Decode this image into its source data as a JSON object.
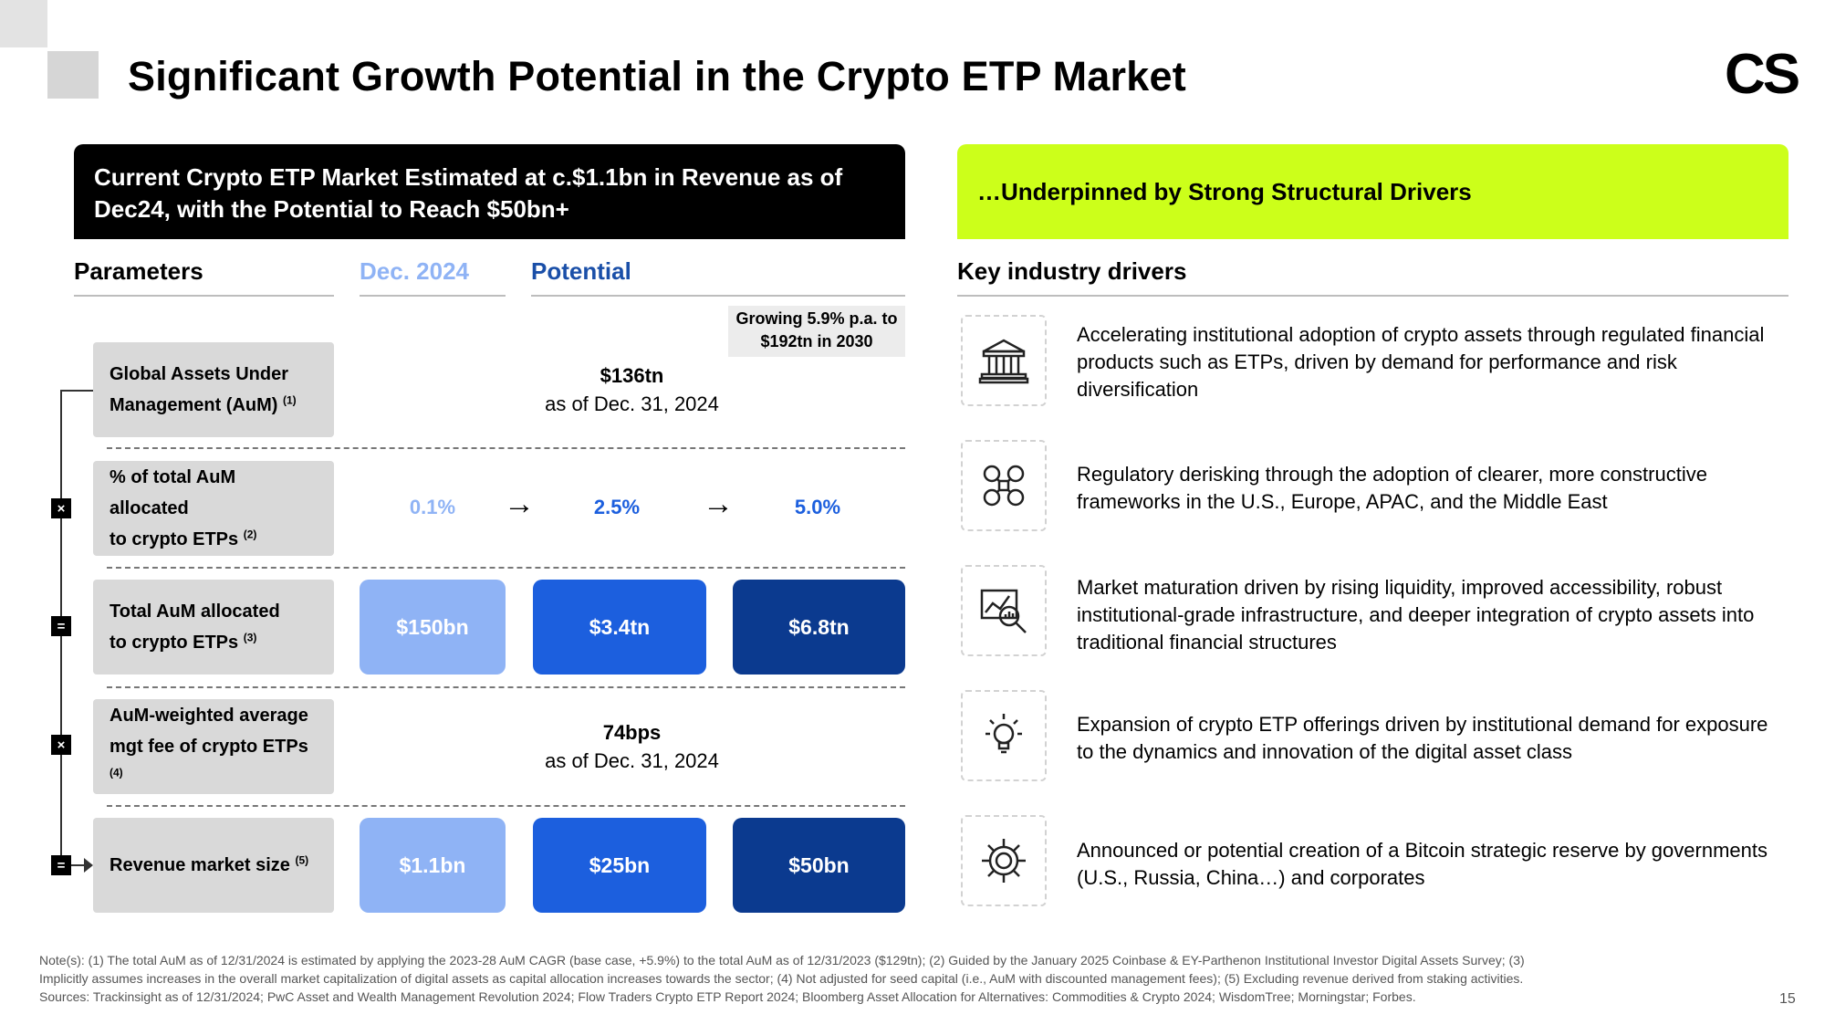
{
  "title": "Significant Growth Potential in the Crypto ETP Market",
  "logo": "CS",
  "left_header": "Current Crypto ETP Market Estimated at c.$1.1bn in Revenue as of Dec24, with the Potential to Reach $50bn+",
  "right_header": "…Underpinned by Strong Structural Drivers",
  "columns": {
    "parameters": "Parameters",
    "dec2024": "Dec. 2024",
    "potential": "Potential",
    "drivers": "Key industry drivers"
  },
  "growth_note": {
    "line1": "Growing 5.9% p.a. to",
    "line2": "$192tn in 2030"
  },
  "rows": [
    {
      "label1": "Global Assets Under",
      "label2": "Management (AuM)",
      "note": "(1)",
      "value": "$136tn",
      "sub": "as of Dec. 31, 2024"
    },
    {
      "label1": "% of total AuM allocated",
      "label2": "to crypto ETPs",
      "note": "(2)",
      "values": [
        "0.1%",
        "2.5%",
        "5.0%"
      ]
    },
    {
      "label1": "Total AuM allocated",
      "label2": "to crypto ETPs",
      "note": "(3)",
      "values": [
        "$150bn",
        "$3.4tn",
        "$6.8tn"
      ]
    },
    {
      "label1": "AuM-weighted average",
      "label2": "mgt fee of crypto ETPs",
      "note": "(4)",
      "value": "74bps",
      "sub": "as of Dec. 31, 2024"
    },
    {
      "label1": "Revenue market size",
      "note": "(5)",
      "values": [
        "$1.1bn",
        "$25bn",
        "$50bn"
      ]
    }
  ],
  "operators": [
    "×",
    "=",
    "×",
    "="
  ],
  "drivers": [
    {
      "icon": "bank-icon",
      "text": "Accelerating institutional adoption of crypto assets through regulated financial products such as ETPs, driven by demand for performance and risk diversification"
    },
    {
      "icon": "network-regulation-icon",
      "text": "Regulatory derisking through the adoption of clearer, more constructive frameworks in the U.S., Europe, APAC, and the Middle East"
    },
    {
      "icon": "market-analysis-icon",
      "text": "Market maturation driven by rising liquidity, improved accessibility, robust institutional-grade infrastructure, and deeper integration of crypto assets into traditional financial structures"
    },
    {
      "icon": "innovation-bulb-icon",
      "text": "Expansion of crypto ETP offerings driven by institutional demand for exposure to the dynamics and innovation of the digital asset class"
    },
    {
      "icon": "bitcoin-gear-icon",
      "text": "Announced or potential creation of a Bitcoin strategic reserve by governments (U.S., Russia, China…) and corporates"
    }
  ],
  "footnotes": [
    "Note(s): (1) The total AuM as of 12/31/2024 is estimated by applying the 2023-28 AuM CAGR (base case, +5.9%) to the total AuM as of 12/31/2023 ($129tn); (2) Guided by the January 2025 Coinbase & EY-Parthenon Institutional Investor Digital Assets Survey; (3)",
    "Implicitly assumes increases in the overall market capitalization of digital assets as capital allocation increases towards the sector; (4) Not adjusted for seed capital (i.e., AuM with discounted management fees); (5) Excluding revenue derived from staking activities.",
    "Sources: Trackinsight as of 12/31/2024; PwC Asset and Wealth Management Revolution 2024; Flow Traders Crypto ETP Report 2024; Bloomberg Asset Allocation for Alternatives: Commodities & Crypto 2024; WisdomTree; Morningstar; Forbes."
  ],
  "page_number": "15"
}
